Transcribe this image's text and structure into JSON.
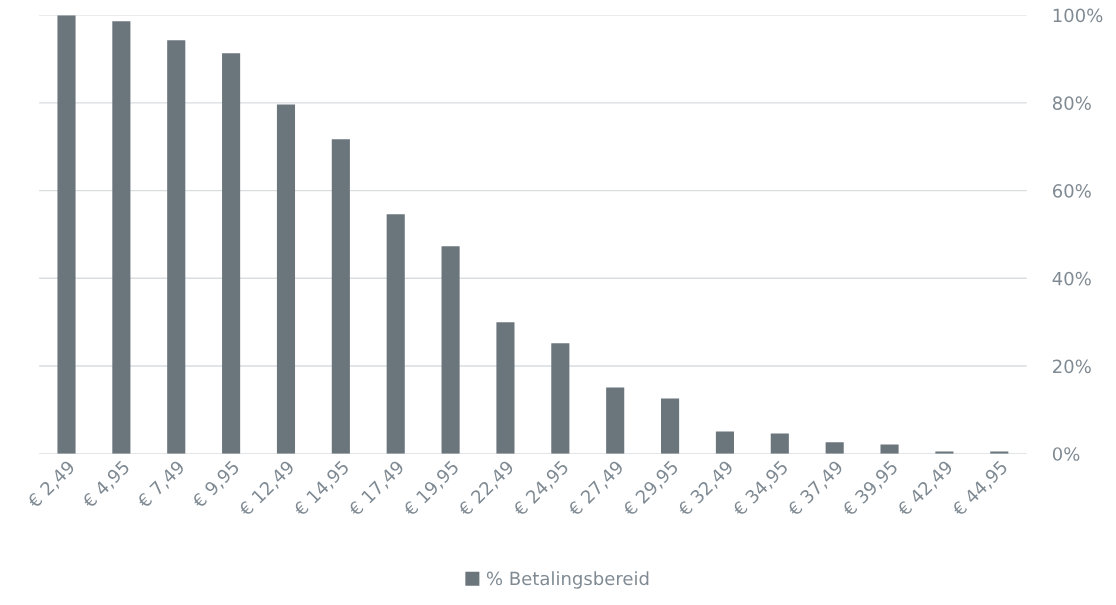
{
  "chart_data": {
    "type": "bar",
    "categories": [
      "€ 2,49",
      "€ 4,95",
      "€ 7,49",
      "€ 9,95",
      "€ 12,49",
      "€ 14,95",
      "€ 17,49",
      "€ 19,95",
      "€ 22,49",
      "€ 24,95",
      "€ 27,49",
      "€ 29,95",
      "€ 32,49",
      "€ 34,95",
      "€ 37,49",
      "€ 39,95",
      "€ 42,49",
      "€ 44,95"
    ],
    "series": [
      {
        "name": "% Betalingsbereid",
        "color": "#6b757c",
        "values": [
          100,
          98.6,
          94.3,
          91.3,
          79.6,
          71.7,
          54.6,
          47.3,
          30.0,
          25.2,
          15.1,
          12.6,
          5.1,
          4.6,
          2.6,
          2.1,
          0.5,
          0.5
        ]
      }
    ],
    "ylim": [
      0,
      100
    ],
    "yticks": [
      {
        "value": 0,
        "label": "0%"
      },
      {
        "value": 20,
        "label": "20%"
      },
      {
        "value": 40,
        "label": "40%"
      },
      {
        "value": 60,
        "label": "60%"
      },
      {
        "value": 80,
        "label": "80%"
      },
      {
        "value": 100,
        "label": "100%"
      }
    ],
    "grid": "y",
    "legend": "bottom"
  }
}
